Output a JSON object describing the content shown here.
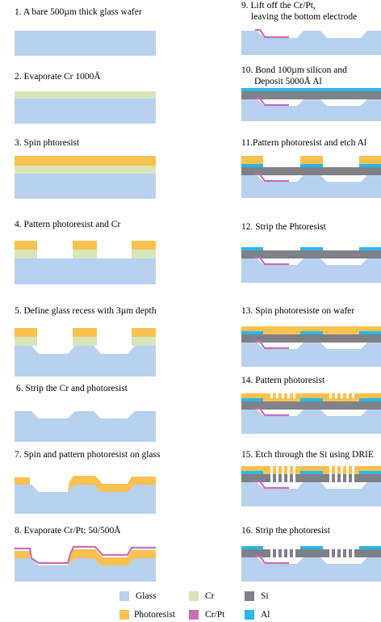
{
  "steps": [
    {
      "label": "1. A bare 500µm thick glass wafer"
    },
    {
      "label": "2. Evaporate Cr 1000Å"
    },
    {
      "label": "3. Spin phtoresist"
    },
    {
      "label": "4. Pattern photoresist and Cr"
    },
    {
      "label": "5. Define glass recess with 3µm depth"
    },
    {
      "label": "6. Strip the Cr and photoresist"
    },
    {
      "label": "7. Spin and pattern photoresist on glass"
    },
    {
      "label": "8. Evaporate Cr/Pt: 50/500Å"
    },
    {
      "label": "9. Lift off the Cr/Pt,",
      "label2": "leaving the bottom electrode"
    },
    {
      "label": "10. Bond 100µm silicon and",
      "label2": "Deposit  5000Å Al"
    },
    {
      "label": "11.Pattern photoresist and etch Al"
    },
    {
      "label": "12. Strip the Phtoresist"
    },
    {
      "label": "13. Spin photoresiste on wafer"
    },
    {
      "label": "14. Pattern photoresist"
    },
    {
      "label": "15. Etch through the Si using DRIE"
    },
    {
      "label": "16. Strip the photoresist"
    }
  ],
  "legend": [
    {
      "label": "Glass",
      "color": "#b8d1ee"
    },
    {
      "label": "Cr",
      "color": "#d6e6b9"
    },
    {
      "label": "Si",
      "color": "#7e8187"
    },
    {
      "label": "Photoresist",
      "color": "#f9c14f"
    },
    {
      "label": "Cr/Pt",
      "color": "#c96eb8"
    },
    {
      "label": "Al",
      "color": "#29b7ea"
    }
  ]
}
